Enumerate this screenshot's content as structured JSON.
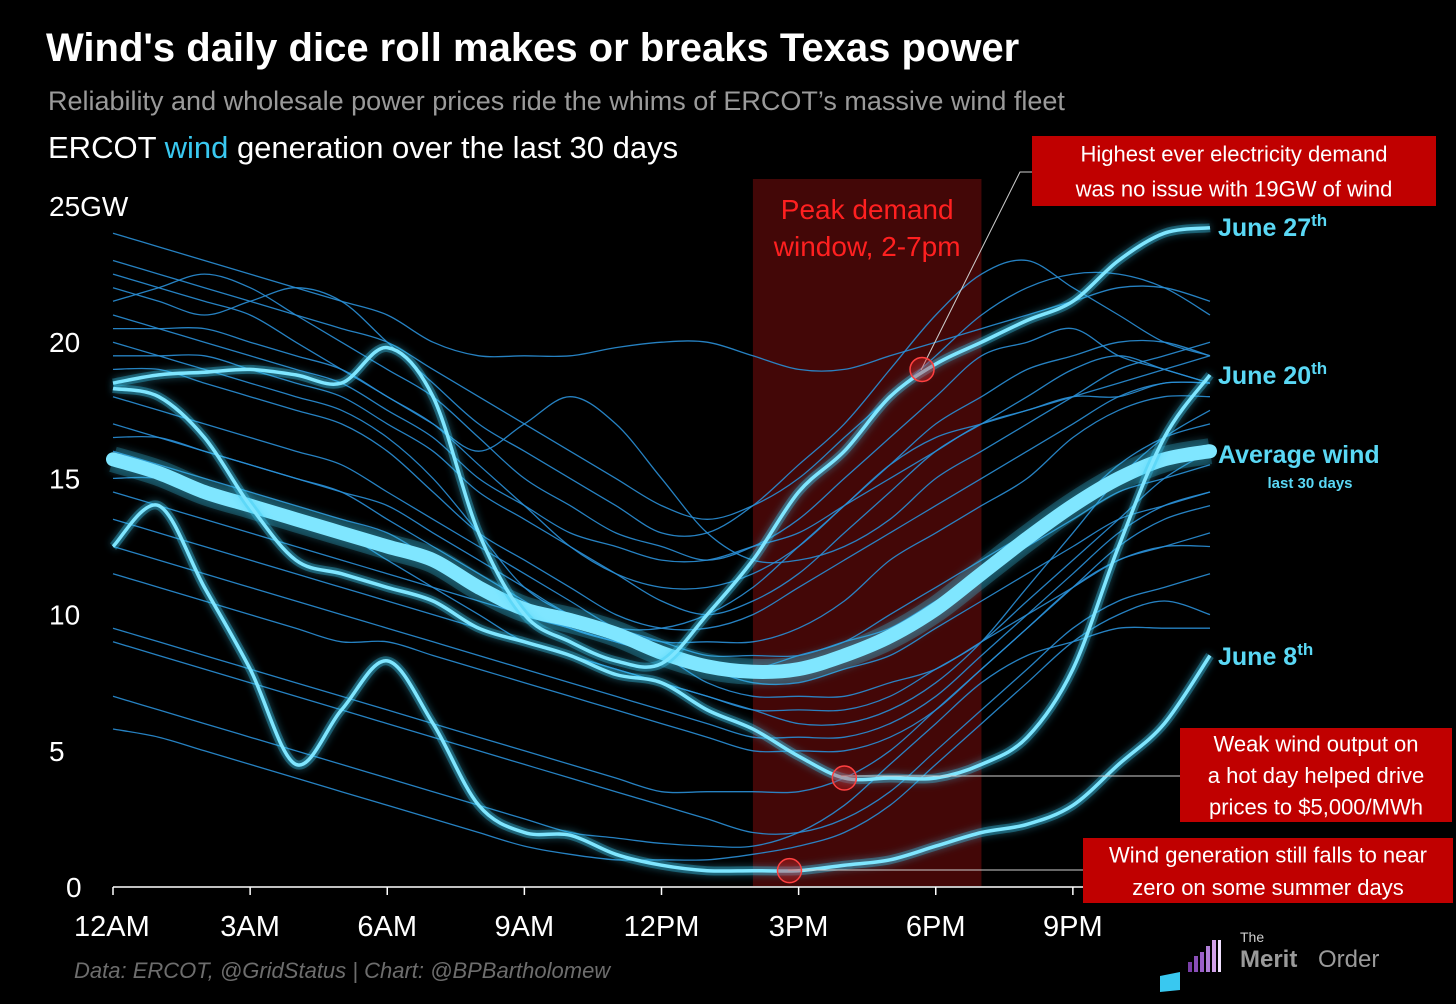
{
  "title": "Wind's daily dice roll makes or breaks Texas power",
  "subtitle": "Reliability and wholesale power prices ride the whims of ERCOT’s massive wind fleet",
  "heading": {
    "before": "ERCOT ",
    "highlight": "wind",
    "after": " generation over the last 30 days"
  },
  "source": "Data: ERCOT, @GridStatus | Chart: @BPBartholomew",
  "logo": {
    "the": "The",
    "merit": "Merit",
    "order": "Order"
  },
  "colors": {
    "background": "#000000",
    "wind": "#39c8f0",
    "highlight": "#7fe6ff",
    "peak_window": "#5a0a0a",
    "callout": "#c00000",
    "peak_text": "#ff2020"
  },
  "chart_data": {
    "type": "line",
    "x_unit": "hour of day",
    "xlim": [
      0,
      24
    ],
    "ylim": [
      0,
      25
    ],
    "x_ticks": [
      {
        "value": 0,
        "label": "12AM"
      },
      {
        "value": 3,
        "label": "3AM"
      },
      {
        "value": 6,
        "label": "6AM"
      },
      {
        "value": 9,
        "label": "9AM"
      },
      {
        "value": 12,
        "label": "12PM"
      },
      {
        "value": 15,
        "label": "3PM"
      },
      {
        "value": 18,
        "label": "6PM"
      },
      {
        "value": 21,
        "label": "9PM"
      }
    ],
    "y_ticks": [
      {
        "value": 0,
        "label": "0"
      },
      {
        "value": 5,
        "label": "5"
      },
      {
        "value": 10,
        "label": "10"
      },
      {
        "value": 15,
        "label": "15"
      },
      {
        "value": 20,
        "label": "20"
      },
      {
        "value": 25,
        "label": "25GW"
      }
    ],
    "peak_window": {
      "start": 14,
      "end": 19,
      "label": [
        "Peak demand",
        "window, 2-7pm"
      ]
    },
    "highlighted_series": [
      {
        "name": "June 27",
        "suffix": "th",
        "x": [
          0,
          1,
          2,
          3,
          4,
          5,
          6,
          7,
          8,
          9,
          10,
          11,
          12,
          13,
          14,
          15,
          16,
          17,
          18,
          19,
          20,
          21,
          22,
          23,
          24
        ],
        "y": [
          18.5,
          18.8,
          18.9,
          19.0,
          18.8,
          18.5,
          19.8,
          18.0,
          13.0,
          10.0,
          9.0,
          8.3,
          8.2,
          10.0,
          12.0,
          14.5,
          16.0,
          18.0,
          19.2,
          20.0,
          20.8,
          21.5,
          23.0,
          24.0,
          24.2
        ]
      },
      {
        "name": "June 20",
        "suffix": "th",
        "x": [
          0,
          1,
          2,
          3,
          4,
          5,
          6,
          7,
          8,
          9,
          10,
          11,
          12,
          13,
          14,
          15,
          16,
          17,
          18,
          19,
          20,
          21,
          22,
          23,
          24
        ],
        "y": [
          18.3,
          18.0,
          16.5,
          14.0,
          12.0,
          11.5,
          11.0,
          10.5,
          9.5,
          9.0,
          8.5,
          7.8,
          7.5,
          6.5,
          5.8,
          4.8,
          4.0,
          4.0,
          4.0,
          4.5,
          5.5,
          8.0,
          12.5,
          16.5,
          18.8
        ]
      },
      {
        "name": "June 8",
        "suffix": "th",
        "x": [
          0,
          1,
          2,
          3,
          4,
          5,
          6,
          7,
          8,
          9,
          10,
          11,
          12,
          13,
          14,
          15,
          16,
          17,
          18,
          19,
          20,
          21,
          22,
          23,
          24
        ],
        "y": [
          12.5,
          14.0,
          11.0,
          8.0,
          4.5,
          6.5,
          8.3,
          6.0,
          3.0,
          2.0,
          1.9,
          1.2,
          0.8,
          0.6,
          0.6,
          0.6,
          0.8,
          1.0,
          1.5,
          2.0,
          2.3,
          3.0,
          4.5,
          6.0,
          8.5
        ]
      }
    ],
    "average": {
      "name": "Average wind",
      "sublabel": "last 30 days",
      "x": [
        0,
        1,
        2,
        3,
        4,
        5,
        6,
        7,
        8,
        9,
        10,
        11,
        12,
        13,
        14,
        15,
        16,
        17,
        18,
        19,
        20,
        21,
        22,
        23,
        24
      ],
      "y": [
        15.7,
        15.2,
        14.5,
        14.0,
        13.5,
        13.0,
        12.5,
        12.0,
        11.0,
        10.2,
        9.8,
        9.3,
        8.6,
        8.1,
        7.9,
        8.0,
        8.5,
        9.2,
        10.2,
        11.5,
        12.8,
        14.0,
        15.0,
        15.7,
        16.0
      ]
    },
    "other_days": [
      [
        24,
        23.5,
        23,
        22.5,
        22,
        21.5,
        21,
        20,
        19.5,
        19.5,
        19.5,
        19.8,
        20,
        20,
        19.5,
        19,
        19,
        19.5,
        20,
        20.5,
        21,
        21.5,
        22,
        22,
        21.5
      ],
      [
        23,
        22.5,
        22,
        21.5,
        21,
        20.5,
        20,
        19,
        18,
        17,
        16,
        15,
        14,
        13.5,
        14,
        15,
        16.5,
        18,
        19.5,
        21,
        22,
        22.5,
        22.5,
        22,
        21
      ],
      [
        22,
        21.5,
        21,
        21.5,
        22,
        21.5,
        20,
        18.5,
        17,
        16,
        15,
        14,
        13,
        13,
        14,
        15.5,
        17,
        19,
        21,
        22.5,
        23,
        22,
        21,
        20,
        19.5
      ],
      [
        21.5,
        22,
        22.5,
        22,
        21,
        20,
        19,
        18,
        16.5,
        15,
        14,
        13,
        12.5,
        12,
        12.5,
        13.5,
        15,
        16.5,
        18,
        19.5,
        20,
        20.5,
        19.5,
        19,
        18.5
      ],
      [
        20.5,
        20.5,
        20.5,
        20,
        19.5,
        19,
        18,
        17,
        15.5,
        14,
        12.5,
        11.5,
        11,
        11,
        11.5,
        12.5,
        14,
        15.5,
        17,
        18,
        19,
        19.5,
        20,
        20,
        19.5
      ],
      [
        19.5,
        19.5,
        19.5,
        19,
        18.5,
        18,
        17,
        16,
        14.5,
        13.5,
        12.5,
        11.5,
        10.5,
        10,
        10.5,
        11.5,
        13,
        14.5,
        16,
        17,
        18,
        19,
        19.5,
        19,
        18.5
      ],
      [
        19,
        19,
        18.5,
        18,
        17.5,
        17,
        16,
        14.5,
        13,
        12,
        11,
        10,
        9.5,
        9.5,
        10,
        11,
        12,
        13,
        14,
        15,
        16,
        17,
        18,
        18.5,
        18.5
      ],
      [
        18,
        17.5,
        17,
        16.5,
        16,
        15.5,
        14.5,
        13.5,
        12.5,
        11.5,
        10.5,
        9.5,
        9,
        9,
        9,
        9.5,
        10.5,
        12,
        13,
        14,
        15,
        16.5,
        17.5,
        18,
        18
      ],
      [
        17,
        16.5,
        16,
        15.5,
        15,
        14.5,
        13.5,
        12.5,
        11.5,
        10.5,
        9.5,
        9,
        8.5,
        8,
        8,
        8.5,
        9,
        10,
        11,
        12,
        13,
        14,
        15.5,
        16.5,
        17
      ],
      [
        16,
        15.5,
        15,
        14.5,
        14,
        13.5,
        13,
        12,
        11,
        10,
        9.5,
        9,
        8.5,
        8,
        7.5,
        7.5,
        8,
        8.5,
        9.5,
        10.5,
        11.5,
        12.5,
        13.5,
        14,
        14.5
      ],
      [
        14.5,
        14,
        13.5,
        13,
        12.5,
        12,
        11.5,
        11,
        10.5,
        10,
        9.5,
        9,
        8.5,
        7.5,
        7,
        7,
        7,
        7.5,
        8,
        9,
        10,
        11,
        12,
        12.5,
        13
      ],
      [
        13.5,
        13,
        12.5,
        12,
        11.5,
        11,
        10.5,
        10,
        9.5,
        9,
        8.5,
        8,
        7.5,
        7,
        6.5,
        6,
        6,
        6.5,
        7.5,
        9,
        11,
        13,
        15,
        16.5,
        17.5
      ],
      [
        12.5,
        12,
        11.5,
        11,
        10.5,
        10,
        9.5,
        9,
        8.5,
        8,
        7.5,
        7,
        6.5,
        6,
        5.5,
        5.5,
        5.5,
        6,
        7,
        8.5,
        10,
        11.5,
        13,
        14,
        14.5
      ],
      [
        11.5,
        11,
        10.5,
        10,
        9.5,
        9,
        9,
        8.5,
        8,
        7.5,
        7,
        6.5,
        6,
        5.5,
        5,
        5,
        5,
        5.5,
        6.5,
        8,
        9.5,
        11,
        12,
        12.5,
        12.5
      ],
      [
        9.5,
        9,
        8.5,
        8,
        7.5,
        7,
        6.5,
        6,
        5.5,
        5,
        4.5,
        4,
        3.5,
        3.5,
        3.5,
        3.5,
        4,
        5,
        6.5,
        8,
        9.5,
        11,
        12.5,
        13.5,
        14
      ],
      [
        9,
        8.5,
        8,
        7.5,
        7,
        6.5,
        6,
        5.5,
        5,
        4.5,
        4,
        3.5,
        3,
        2.5,
        2,
        2,
        2.5,
        3.5,
        5,
        6.5,
        8,
        9.5,
        10.5,
        11,
        11.5
      ],
      [
        5.8,
        5.5,
        5,
        4.5,
        4,
        3.5,
        3,
        2.5,
        2,
        1.5,
        1.2,
        1,
        1,
        1,
        1.2,
        1.5,
        2,
        3,
        4.5,
        6,
        7.5,
        9,
        10,
        10.5,
        10
      ],
      [
        7,
        6.5,
        6,
        5.5,
        5,
        4.5,
        4,
        3.5,
        3,
        2.5,
        2,
        1.8,
        1.6,
        1.5,
        1.5,
        2,
        3,
        4.5,
        6,
        7.5,
        8.5,
        9,
        9.5,
        9.5,
        9.5
      ],
      [
        20,
        19.5,
        19,
        18.5,
        18,
        17.5,
        16.5,
        15,
        13,
        11,
        10,
        9.5,
        9.5,
        10,
        11,
        12.5,
        14,
        15.5,
        16.5,
        17,
        17.5,
        18,
        18.5,
        19,
        19.5
      ],
      [
        21,
        20.5,
        20,
        19.5,
        19,
        18.5,
        17.5,
        16.5,
        15,
        14,
        13,
        12.5,
        12,
        12,
        12.5,
        13,
        14,
        15,
        16,
        17,
        17.5,
        18,
        18,
        18.5,
        18.5
      ],
      [
        22.5,
        22,
        21.5,
        21,
        20,
        19,
        18,
        17,
        16,
        17,
        18,
        17,
        15,
        13,
        12,
        12,
        12.5,
        13.5,
        15,
        16,
        17,
        18,
        19,
        19.5,
        20
      ],
      [
        16.5,
        16.5,
        16,
        15.5,
        15,
        14.5,
        14,
        13,
        12,
        11,
        10,
        9.5,
        9,
        8.5,
        8.5,
        8.5,
        9,
        9.5,
        10.5,
        11.5,
        12.5,
        13.5,
        14.5,
        15,
        15.5
      ],
      [
        15,
        15,
        14.5,
        14,
        13.5,
        13,
        12,
        11,
        10,
        9,
        8.5,
        8,
        7.5,
        7,
        6.5,
        6.5,
        6.5,
        7,
        8,
        9,
        10.5,
        12,
        13.5,
        15,
        16
      ]
    ],
    "annotations": [
      {
        "text": [
          "Highest ever electricity demand",
          "was no issue with 19GW of wind"
        ],
        "x": 17.7,
        "y": 19.0
      },
      {
        "text": [
          "Weak wind output on",
          "a hot day helped drive",
          "prices to $5,000/MWh"
        ],
        "x": 16.0,
        "y": 4.0
      },
      {
        "text": [
          "Wind generation still falls to near",
          "zero on some summer days"
        ],
        "x": 14.8,
        "y": 0.6
      }
    ]
  }
}
